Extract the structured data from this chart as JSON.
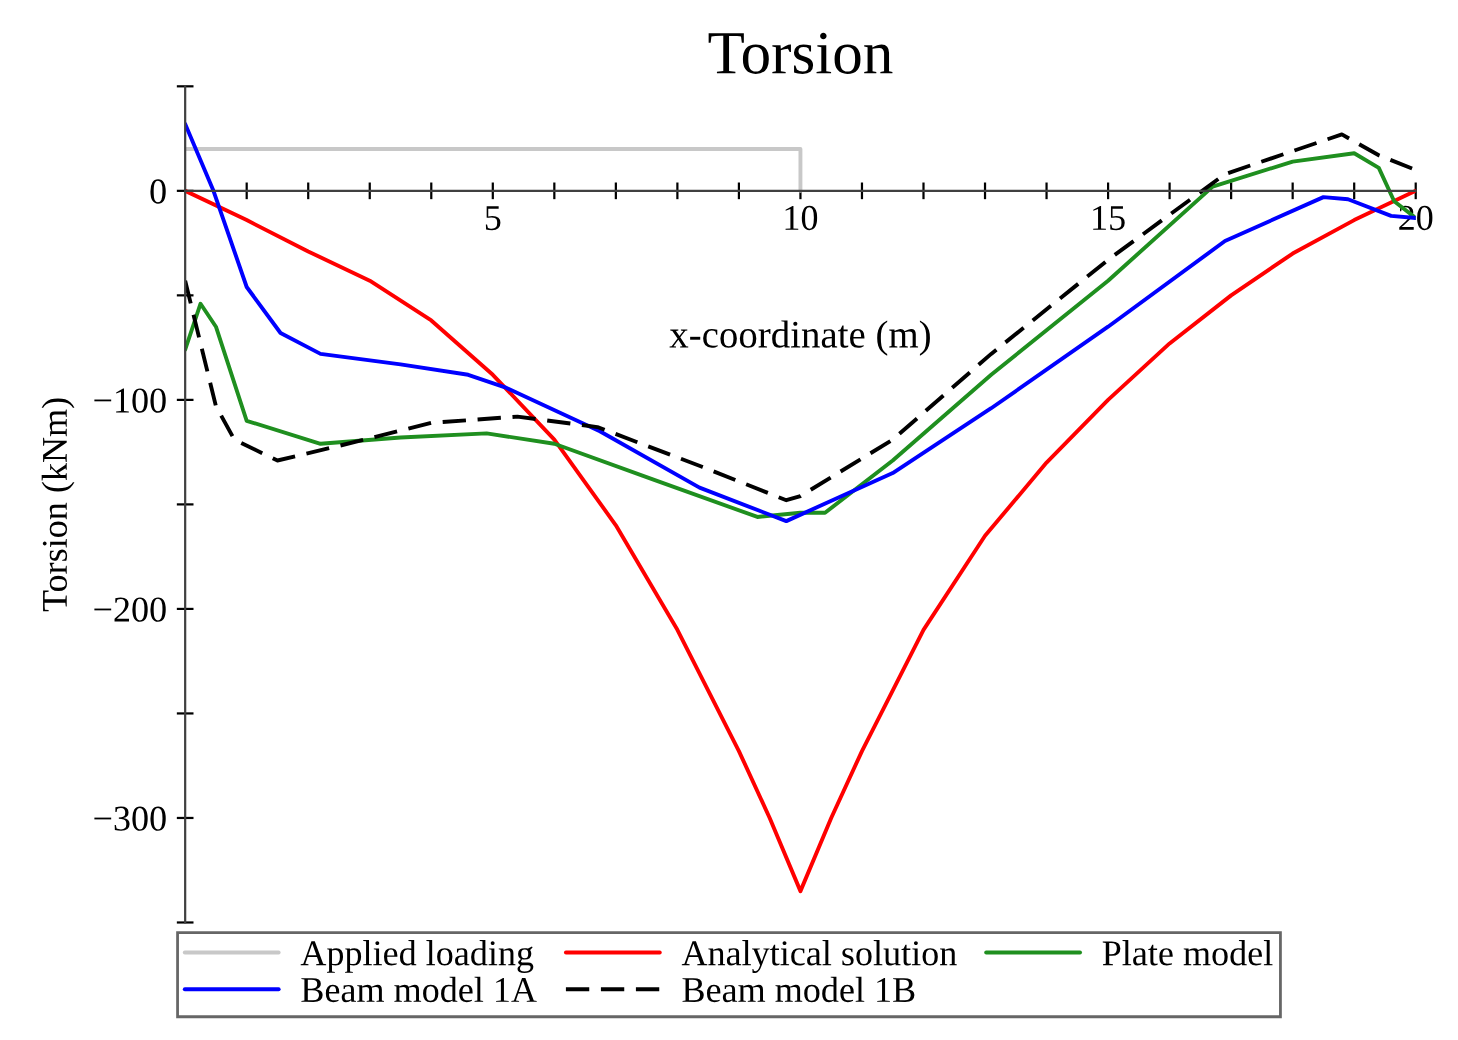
{
  "chart_data": {
    "type": "line",
    "title": "Torsion",
    "xlabel": "x-coordinate (m)",
    "ylabel": "Torsion (kNm)",
    "xlim": [
      0,
      20
    ],
    "ylim": [
      -350,
      50
    ],
    "xticks": [
      {
        "value": 1,
        "label": null
      },
      {
        "value": 2,
        "label": null
      },
      {
        "value": 3,
        "label": null
      },
      {
        "value": 4,
        "label": null
      },
      5,
      {
        "value": 6,
        "label": null
      },
      {
        "value": 7,
        "label": null
      },
      {
        "value": 8,
        "label": null
      },
      {
        "value": 9,
        "label": null
      },
      10,
      {
        "value": 11,
        "label": null
      },
      {
        "value": 12,
        "label": null
      },
      {
        "value": 13,
        "label": null
      },
      {
        "value": 14,
        "label": null
      },
      15,
      {
        "value": 16,
        "label": null
      },
      {
        "value": 17,
        "label": null
      },
      {
        "value": 18,
        "label": null
      },
      {
        "value": 19,
        "label": null
      },
      20
    ],
    "yticks": [
      {
        "value": -350,
        "label": null
      },
      {
        "value": -300,
        "label": "−300"
      },
      {
        "value": -250,
        "label": null
      },
      {
        "value": -200,
        "label": "−200"
      },
      {
        "value": -150,
        "label": null
      },
      {
        "value": -100,
        "label": "−100"
      },
      {
        "value": -50,
        "label": null
      },
      0,
      {
        "value": 50,
        "label": null
      }
    ],
    "grid": false,
    "legend": "bottom",
    "marker": "none",
    "series": [
      {
        "name": "Applied loading",
        "color": "#c8c8c8",
        "line_style": "solid",
        "x": [
          0,
          10,
          10
        ],
        "values": [
          20,
          20,
          0
        ]
      },
      {
        "name": "Analytical solution",
        "color": "#ff0000",
        "line_style": "solid",
        "x": [
          0,
          1,
          2,
          3,
          4,
          5,
          6,
          7,
          8,
          9,
          9.5,
          10,
          10.5,
          11,
          12,
          13,
          14,
          15,
          16,
          17,
          18,
          19,
          20
        ],
        "values": [
          0,
          -14,
          -29,
          -43,
          -62,
          -88,
          -119,
          -160,
          -210,
          -268,
          -300,
          -335,
          -300,
          -268,
          -210,
          -165,
          -130,
          -100,
          -73,
          -50,
          -30,
          -14,
          0
        ]
      },
      {
        "name": "Plate model",
        "color": "#1f8f1f",
        "line_style": "solid",
        "x": [
          0,
          0.25,
          0.5,
          1,
          2.2,
          3.5,
          4.9,
          6,
          7.6,
          9.3,
          10,
          10.4,
          11.5,
          13.1,
          15,
          16.7,
          18,
          19,
          19.4,
          19.65,
          20
        ],
        "values": [
          -76,
          -54,
          -65,
          -110,
          -121,
          -118,
          -116,
          -121,
          -138,
          -156,
          -154,
          -154,
          -129,
          -88,
          -43,
          2,
          14,
          18,
          11,
          -5,
          -13
        ]
      },
      {
        "name": "Beam model 1A",
        "color": "#0000ff",
        "line_style": "solid",
        "x": [
          0,
          0.46,
          1,
          1.55,
          2.2,
          3.5,
          4.6,
          5.2,
          6.74,
          8.36,
          9.77,
          11.5,
          13.1,
          15,
          16.9,
          18.5,
          18.9,
          19.6,
          20
        ],
        "values": [
          32,
          0,
          -46,
          -68,
          -78,
          -83,
          -88,
          -94,
          -115,
          -142,
          -158,
          -135,
          -104,
          -65,
          -24,
          -3,
          -4,
          -12,
          -13
        ]
      },
      {
        "name": "Beam model 1B",
        "color": "#000000",
        "line_style": "dashed",
        "x": [
          0,
          0.5,
          0.8,
          1.5,
          2.5,
          4,
          5.4,
          6.7,
          8.4,
          9.77,
          10,
          11.5,
          13.1,
          15,
          16.9,
          18.8,
          19.4,
          20
        ],
        "values": [
          -43,
          -103,
          -119,
          -129,
          -122,
          -111,
          -108,
          -113,
          -132,
          -148,
          -146,
          -119,
          -78,
          -33,
          8,
          27,
          17,
          10
        ]
      }
    ]
  }
}
